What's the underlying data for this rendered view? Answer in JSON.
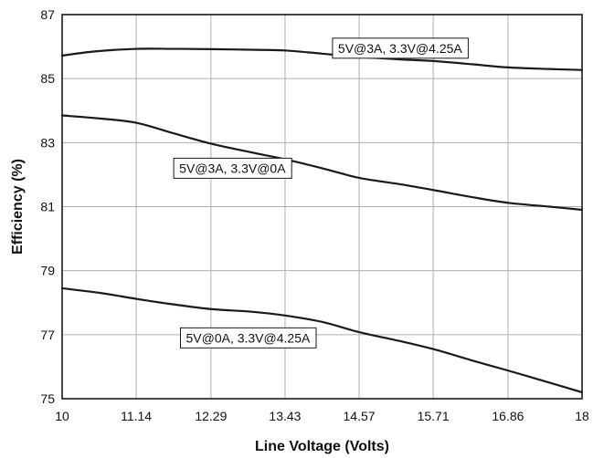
{
  "chart_data": {
    "type": "line",
    "title": "",
    "xlabel": "Line Voltage (Volts)",
    "ylabel": "Efficiency (%)",
    "xlim": [
      10,
      18
    ],
    "ylim": [
      75,
      87
    ],
    "x_ticks": [
      "10",
      "11.14",
      "12.29",
      "13.43",
      "14.57",
      "15.71",
      "16.86",
      "18"
    ],
    "y_ticks": [
      "75",
      "77",
      "79",
      "81",
      "83",
      "85",
      "87"
    ],
    "grid": true,
    "legend": "none",
    "series": [
      {
        "name": "5V@3A, 3.3V@4.25A",
        "x": [
          10,
          10.5,
          11.14,
          11.7,
          12.29,
          13.0,
          13.43,
          14.0,
          14.57,
          15.2,
          15.71,
          16.3,
          16.86,
          17.5,
          18
        ],
        "y": [
          85.72,
          85.85,
          85.93,
          85.93,
          85.92,
          85.9,
          85.88,
          85.78,
          85.68,
          85.6,
          85.55,
          85.45,
          85.35,
          85.3,
          85.27
        ]
      },
      {
        "name": "5V@3A, 3.3V@0A",
        "x": [
          10,
          10.6,
          11.14,
          11.7,
          12.29,
          12.9,
          13.43,
          14.0,
          14.57,
          15.2,
          15.71,
          16.3,
          16.86,
          17.5,
          18
        ],
        "y": [
          83.85,
          83.75,
          83.62,
          83.3,
          82.97,
          82.7,
          82.48,
          82.2,
          81.9,
          81.7,
          81.52,
          81.3,
          81.12,
          81.0,
          80.9
        ]
      },
      {
        "name": "5V@0A, 3.3V@4.25A",
        "x": [
          10,
          10.6,
          11.14,
          11.7,
          12.29,
          12.9,
          13.43,
          14.0,
          14.57,
          15.2,
          15.71,
          16.3,
          16.86,
          17.5,
          18
        ],
        "y": [
          78.45,
          78.3,
          78.12,
          77.95,
          77.8,
          77.72,
          77.6,
          77.4,
          77.08,
          76.8,
          76.55,
          76.2,
          75.88,
          75.5,
          75.2
        ]
      }
    ],
    "annotations": [
      {
        "text": "5V@3A, 3.3V@4.25A",
        "series": 0,
        "x": 15.2,
        "y": 85.95
      },
      {
        "text": "5V@3A, 3.3V@0A",
        "series": 1,
        "x": 12.62,
        "y": 82.2
      },
      {
        "text": "5V@0A, 3.3V@4.25A",
        "series": 2,
        "x": 12.86,
        "y": 76.9
      }
    ],
    "colors": {
      "line": "#1a1a1a",
      "grid": "#b0b0b0",
      "frame": "#1a1a1a",
      "label_box_border": "#1a1a1a"
    }
  }
}
